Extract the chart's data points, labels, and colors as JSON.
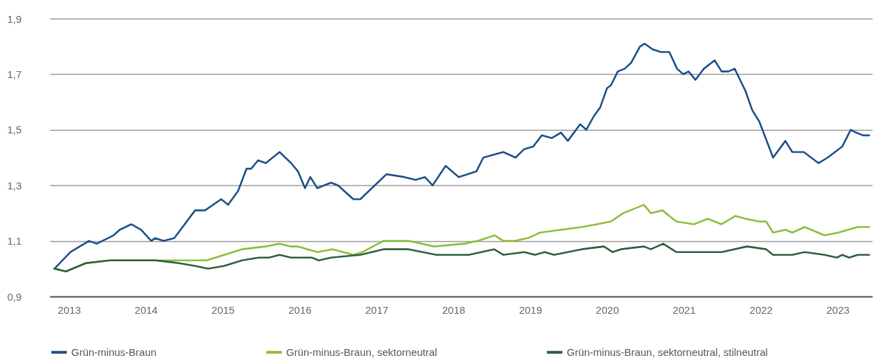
{
  "chart_data": {
    "type": "line",
    "xlim": [
      2012.75,
      2023.45
    ],
    "xticks": [
      2013,
      2014,
      2015,
      2016,
      2017,
      2018,
      2019,
      2020,
      2021,
      2022,
      2023
    ],
    "ylim": [
      0.9,
      1.9
    ],
    "yticks": [
      {
        "value": 0.9,
        "label": "0,9"
      },
      {
        "value": 1.1,
        "label": "1,1"
      },
      {
        "value": 1.3,
        "label": "1,3"
      },
      {
        "value": 1.5,
        "label": "1,5"
      },
      {
        "value": 1.7,
        "label": "1,7"
      },
      {
        "value": 1.9,
        "label": "1,9"
      }
    ],
    "grid": "y",
    "legend": "bottom",
    "series": [
      {
        "name": "Grün-minus-Braun",
        "color": "#1d4f86",
        "x": [
          2012.81,
          2013.02,
          2013.26,
          2013.36,
          2013.58,
          2013.66,
          2013.81,
          2013.94,
          2014.07,
          2014.12,
          2014.23,
          2014.37,
          2014.64,
          2014.77,
          2014.98,
          2015.07,
          2015.2,
          2015.31,
          2015.37,
          2015.46,
          2015.56,
          2015.74,
          2015.89,
          2015.98,
          2016.07,
          2016.14,
          2016.23,
          2016.41,
          2016.5,
          2016.7,
          2016.79,
          2017.13,
          2017.36,
          2017.51,
          2017.63,
          2017.73,
          2017.9,
          2018.07,
          2018.3,
          2018.39,
          2018.65,
          2018.81,
          2018.92,
          2019.04,
          2019.15,
          2019.28,
          2019.4,
          2019.49,
          2019.65,
          2019.73,
          2019.83,
          2019.91,
          2020.0,
          2020.05,
          2020.14,
          2020.23,
          2020.31,
          2020.43,
          2020.49,
          2020.59,
          2020.7,
          2020.81,
          2020.91,
          2020.99,
          2021.06,
          2021.15,
          2021.26,
          2021.4,
          2021.49,
          2021.58,
          2021.66,
          2021.8,
          2021.89,
          2021.98,
          2022.16,
          2022.32,
          2022.41,
          2022.56,
          2022.75,
          2022.87,
          2023.06,
          2023.17,
          2023.24,
          2023.33,
          2023.41
        ],
        "values": [
          1.0,
          1.06,
          1.1,
          1.09,
          1.12,
          1.14,
          1.16,
          1.14,
          1.1,
          1.11,
          1.1,
          1.11,
          1.21,
          1.21,
          1.25,
          1.23,
          1.28,
          1.36,
          1.36,
          1.39,
          1.38,
          1.42,
          1.38,
          1.35,
          1.29,
          1.33,
          1.29,
          1.31,
          1.3,
          1.25,
          1.25,
          1.34,
          1.33,
          1.32,
          1.33,
          1.3,
          1.37,
          1.33,
          1.35,
          1.4,
          1.42,
          1.4,
          1.43,
          1.44,
          1.48,
          1.47,
          1.49,
          1.46,
          1.52,
          1.5,
          1.55,
          1.58,
          1.65,
          1.66,
          1.71,
          1.72,
          1.74,
          1.8,
          1.81,
          1.79,
          1.78,
          1.78,
          1.72,
          1.7,
          1.71,
          1.68,
          1.72,
          1.75,
          1.71,
          1.71,
          1.72,
          1.64,
          1.57,
          1.53,
          1.4,
          1.46,
          1.42,
          1.42,
          1.38,
          1.4,
          1.44,
          1.5,
          1.49,
          1.48,
          1.48
        ]
      },
      {
        "name": "Grün-minus-Braun, sektorneutral",
        "color": "#8cbd3a",
        "x": [
          2012.81,
          2012.96,
          2013.22,
          2013.53,
          2013.83,
          2014.12,
          2014.43,
          2014.79,
          2015.02,
          2015.25,
          2015.56,
          2015.74,
          2015.89,
          2015.98,
          2016.23,
          2016.43,
          2016.7,
          2016.82,
          2017.09,
          2017.42,
          2017.75,
          2018.14,
          2018.32,
          2018.54,
          2018.65,
          2018.8,
          2018.97,
          2019.13,
          2019.4,
          2019.67,
          2019.87,
          2020.05,
          2020.21,
          2020.48,
          2020.57,
          2020.72,
          2020.9,
          2021.13,
          2021.31,
          2021.49,
          2021.67,
          2021.8,
          2021.98,
          2022.07,
          2022.16,
          2022.32,
          2022.41,
          2022.57,
          2022.83,
          2023.01,
          2023.26,
          2023.41
        ],
        "values": [
          1.0,
          0.99,
          1.02,
          1.03,
          1.03,
          1.03,
          1.03,
          1.03,
          1.05,
          1.07,
          1.08,
          1.09,
          1.08,
          1.08,
          1.06,
          1.07,
          1.05,
          1.06,
          1.1,
          1.1,
          1.08,
          1.09,
          1.1,
          1.12,
          1.1,
          1.1,
          1.11,
          1.13,
          1.14,
          1.15,
          1.16,
          1.17,
          1.2,
          1.23,
          1.2,
          1.21,
          1.17,
          1.16,
          1.18,
          1.16,
          1.19,
          1.18,
          1.17,
          1.17,
          1.13,
          1.14,
          1.13,
          1.15,
          1.12,
          1.13,
          1.15,
          1.15
        ]
      },
      {
        "name": "Grün-minus-Braun, sektorneutral, stilneutral",
        "color": "#2e5e3a",
        "x": [
          2012.81,
          2012.96,
          2013.22,
          2013.53,
          2013.83,
          2014.12,
          2014.43,
          2014.64,
          2014.81,
          2015.02,
          2015.25,
          2015.47,
          2015.6,
          2015.74,
          2015.89,
          2015.98,
          2016.16,
          2016.25,
          2016.41,
          2016.79,
          2017.09,
          2017.42,
          2017.78,
          2018.2,
          2018.53,
          2018.65,
          2018.92,
          2019.06,
          2019.19,
          2019.31,
          2019.67,
          2019.96,
          2020.07,
          2020.18,
          2020.48,
          2020.57,
          2020.73,
          2020.9,
          2021.26,
          2021.49,
          2021.82,
          2022.07,
          2022.16,
          2022.32,
          2022.41,
          2022.57,
          2022.83,
          2022.99,
          2023.06,
          2023.15,
          2023.26,
          2023.41
        ],
        "values": [
          1.0,
          0.99,
          1.02,
          1.03,
          1.03,
          1.03,
          1.02,
          1.01,
          1.0,
          1.01,
          1.03,
          1.04,
          1.04,
          1.05,
          1.04,
          1.04,
          1.04,
          1.03,
          1.04,
          1.05,
          1.07,
          1.07,
          1.05,
          1.05,
          1.07,
          1.05,
          1.06,
          1.05,
          1.06,
          1.05,
          1.07,
          1.08,
          1.06,
          1.07,
          1.08,
          1.07,
          1.09,
          1.06,
          1.06,
          1.06,
          1.08,
          1.07,
          1.05,
          1.05,
          1.05,
          1.06,
          1.05,
          1.04,
          1.05,
          1.04,
          1.05,
          1.05
        ]
      }
    ]
  }
}
